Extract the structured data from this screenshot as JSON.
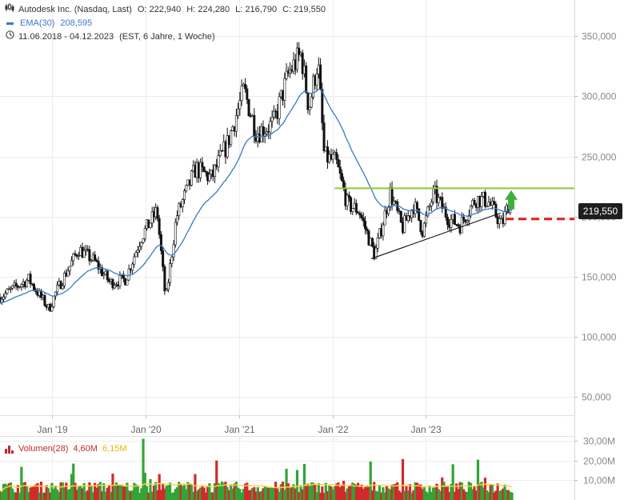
{
  "header": {
    "title": "Autodesk Inc. (Nasdaq, Last)",
    "open": "O: 222,940",
    "high": "H: 224,280",
    "low": "L: 216,790",
    "close": "C: 219,550",
    "ema_label": "EMA(30)",
    "ema_value": "208,595",
    "range": "11.06.2018 - 04.12.2023",
    "range_note": "(EST, 6 Jahre, 1 Woche)"
  },
  "last_price_label": "219,550",
  "volume_legend": {
    "label": "Volumen(28)",
    "value": "4,60M",
    "avg": "6,15M"
  },
  "colors": {
    "up": "#33a336",
    "down": "#d02b2b",
    "ema": "#3a78c9",
    "resistance": "#8cc63f",
    "support_dashed": "#e01b1b",
    "trendline": "#111111",
    "volume_avg": "#ffd23c"
  },
  "chart_data": {
    "type": "line",
    "title": "Autodesk Inc. (Nasdaq, Last)",
    "xlabel": "",
    "ylabel": "",
    "x_ticks": [
      "Jan '19",
      "Jan '20",
      "Jan '21",
      "Jan '22",
      "Jan '23"
    ],
    "y_ticks": [
      "350,000",
      "300,000",
      "250,000",
      "200,000",
      "150,000",
      "100,000",
      "50,000"
    ],
    "ylim": [
      35,
      380
    ],
    "x_range": [
      "2018-06-11",
      "2023-12-04"
    ],
    "grid": true,
    "price_anchors": [
      {
        "date": "2018-06-11",
        "value": 133
      },
      {
        "date": "2018-08-01",
        "value": 140
      },
      {
        "date": "2018-10-01",
        "value": 148
      },
      {
        "date": "2018-12-20",
        "value": 123
      },
      {
        "date": "2019-01-15",
        "value": 137
      },
      {
        "date": "2019-04-15",
        "value": 173
      },
      {
        "date": "2019-06-15",
        "value": 163
      },
      {
        "date": "2019-08-15",
        "value": 145
      },
      {
        "date": "2019-10-15",
        "value": 148
      },
      {
        "date": "2019-12-15",
        "value": 183
      },
      {
        "date": "2020-02-15",
        "value": 205
      },
      {
        "date": "2020-03-20",
        "value": 130
      },
      {
        "date": "2020-05-01",
        "value": 200
      },
      {
        "date": "2020-07-15",
        "value": 240
      },
      {
        "date": "2020-09-15",
        "value": 232
      },
      {
        "date": "2020-11-15",
        "value": 260
      },
      {
        "date": "2021-01-20",
        "value": 305
      },
      {
        "date": "2021-03-10",
        "value": 270
      },
      {
        "date": "2021-05-15",
        "value": 277
      },
      {
        "date": "2021-07-15",
        "value": 320
      },
      {
        "date": "2021-09-01",
        "value": 335
      },
      {
        "date": "2021-10-01",
        "value": 290
      },
      {
        "date": "2021-11-05",
        "value": 330
      },
      {
        "date": "2021-11-30",
        "value": 250
      },
      {
        "date": "2022-01-15",
        "value": 245
      },
      {
        "date": "2022-03-01",
        "value": 210
      },
      {
        "date": "2022-04-15",
        "value": 205
      },
      {
        "date": "2022-06-15",
        "value": 168
      },
      {
        "date": "2022-08-15",
        "value": 220
      },
      {
        "date": "2022-10-01",
        "value": 190
      },
      {
        "date": "2022-11-15",
        "value": 210
      },
      {
        "date": "2022-12-20",
        "value": 188
      },
      {
        "date": "2023-02-01",
        "value": 220
      },
      {
        "date": "2023-04-01",
        "value": 198
      },
      {
        "date": "2023-05-15",
        "value": 193
      },
      {
        "date": "2023-07-15",
        "value": 215
      },
      {
        "date": "2023-09-01",
        "value": 213
      },
      {
        "date": "2023-10-25",
        "value": 193
      },
      {
        "date": "2023-12-04",
        "value": 219.55
      }
    ],
    "ema_period": 30,
    "last_ema": 208.595,
    "lines": {
      "resistance": 223.5,
      "support_dashed": 198,
      "trendline": [
        {
          "date": "2022-06-01",
          "value": 165
        },
        {
          "date": "2023-10-20",
          "value": 203
        }
      ]
    },
    "volume": {
      "y_ticks": [
        "30,00M",
        "20,00M",
        "10,00M"
      ],
      "ylim": [
        0,
        32
      ],
      "base_level": 6.5
    }
  }
}
